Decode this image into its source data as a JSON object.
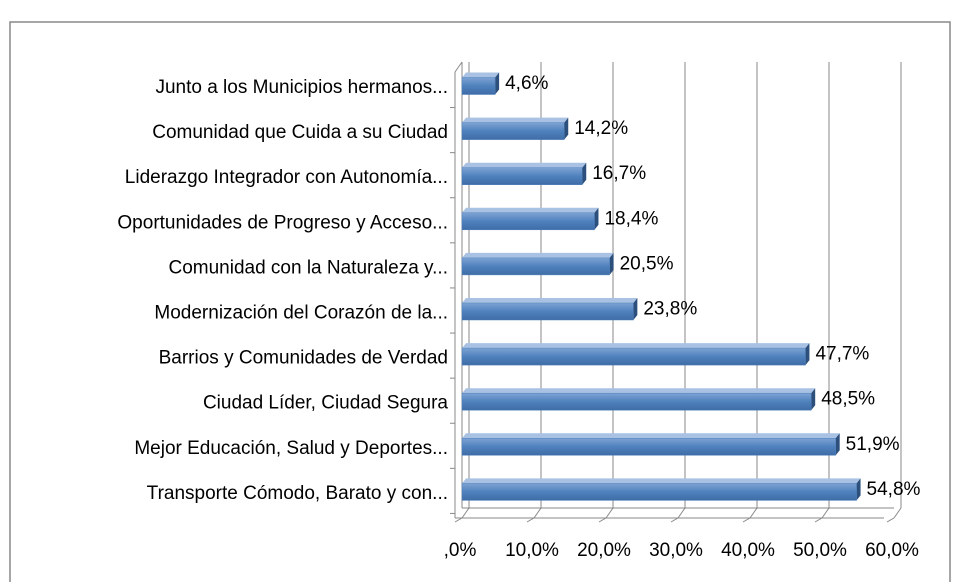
{
  "chart_data": {
    "type": "bar",
    "orientation": "horizontal",
    "categories": [
      "Junto a los Municipios hermanos...",
      "Comunidad que Cuida a su Ciudad",
      "Liderazgo Integrador con Autonomía...",
      "Oportunidades de Progreso y Acceso...",
      "Comunidad con la Naturaleza y...",
      "Modernización del Corazón de la...",
      "Barrios y Comunidades de Verdad",
      "Ciudad Líder, Ciudad Segura",
      "Mejor Educación, Salud y Deportes...",
      "Transporte Cómodo, Barato y con..."
    ],
    "values": [
      4.6,
      14.2,
      16.7,
      18.4,
      20.5,
      23.8,
      47.7,
      48.5,
      51.9,
      54.8
    ],
    "value_labels": [
      "4,6%",
      "14,2%",
      "16,7%",
      "18,4%",
      "20,5%",
      "23,8%",
      "47,7%",
      "48,5%",
      "51,9%",
      "54,8%"
    ],
    "color": "#4f81bd",
    "xlim": [
      0,
      60
    ],
    "xticks": [
      {
        "value": 0,
        "label": ",0%"
      },
      {
        "value": 10,
        "label": "10,0%"
      },
      {
        "value": 20,
        "label": "20,0%"
      },
      {
        "value": 30,
        "label": "30,0%"
      },
      {
        "value": 40,
        "label": "40,0%"
      },
      {
        "value": 50,
        "label": "50,0%"
      },
      {
        "value": 60,
        "label": "60,0%"
      }
    ],
    "grid": true
  }
}
